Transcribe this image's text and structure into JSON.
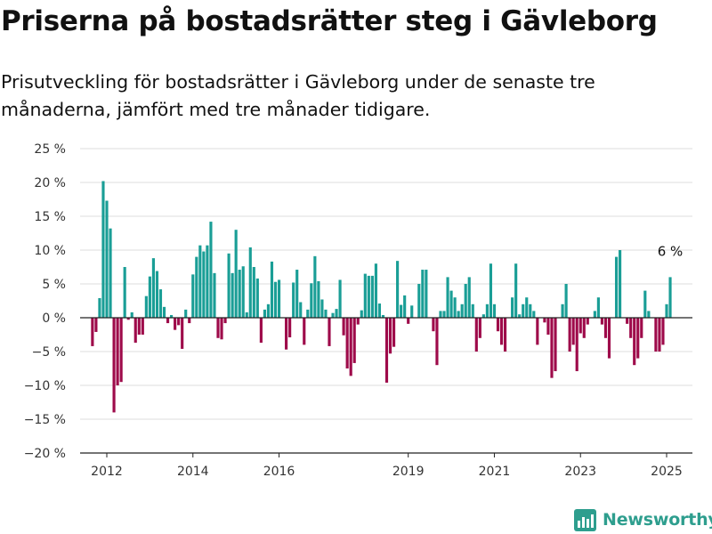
{
  "header": {
    "title": "Priserna på bostadsrätter steg i Gävleborg",
    "subtitle": "Prisutveckling för bostadsrätter i Gävleborg under de senaste tre månaderna, jämfört med tre månader tidigare."
  },
  "brand": {
    "name": "Newsworthy",
    "icon": "newsworthy-logo-icon"
  },
  "colors": {
    "positive": "#1a9e96",
    "negative": "#9e0a4a",
    "grid": "#dddddd",
    "axis": "#222222",
    "brand": "#2e9e8e"
  },
  "chart_data": {
    "type": "bar",
    "title": "",
    "xlabel": "",
    "ylabel": "",
    "ylim": [
      -20,
      25
    ],
    "yticks": [
      25,
      20,
      15,
      10,
      5,
      0,
      -5,
      -10,
      -15,
      -20
    ],
    "ytick_labels": [
      "25 %",
      "20 %",
      "15 %",
      "10 %",
      "5 %",
      "0 %",
      "−5 %",
      "−10 %",
      "−15 %",
      "−20 %"
    ],
    "xticks": [
      2012,
      2014,
      2016,
      2019,
      2021,
      2023,
      2025
    ],
    "xtick_labels": [
      "2012",
      "2014",
      "2016",
      "2019",
      "2021",
      "2023",
      "2025"
    ],
    "x_start": "2011-09",
    "x_end": "2025-05",
    "grid": true,
    "annotation": {
      "label": "6 %",
      "at": "last"
    },
    "values": [
      -4.2,
      -2.1,
      2.9,
      20.2,
      17.3,
      13.2,
      -14,
      -10,
      -9.5,
      7.5,
      -0.3,
      0.8,
      -3.7,
      -2.5,
      -2.5,
      3.2,
      6.1,
      8.8,
      6.9,
      4.2,
      1.6,
      -0.8,
      0.4,
      -1.8,
      -1.1,
      -4.6,
      1.2,
      -0.8,
      6.4,
      9,
      10.7,
      9.8,
      10.7,
      14.2,
      6.6,
      -3,
      -3.2,
      -0.8,
      9.5,
      6.6,
      13,
      7.1,
      7.6,
      0.8,
      10.4,
      7.5,
      5.8,
      -3.7,
      1.2,
      2,
      8.3,
      5.3,
      5.6,
      0,
      -4.7,
      -2.9,
      5.2,
      7.1,
      2.3,
      -4,
      1.2,
      5.1,
      9.1,
      5.4,
      2.7,
      1.2,
      -4.2,
      0.7,
      1.3,
      5.6,
      -2.6,
      -7.5,
      -8.6,
      -6.7,
      -1,
      1.1,
      6.5,
      6.2,
      6.2,
      8,
      2.1,
      0.4,
      -9.6,
      -5.3,
      -4.3,
      8.4,
      1.9,
      3.3,
      -0.9,
      1.8,
      0,
      5,
      7.1,
      7.1,
      0,
      -2,
      -7,
      1,
      1,
      6,
      4,
      3,
      1,
      2,
      5,
      6,
      2,
      -5,
      -3,
      0.5,
      2,
      8,
      2,
      -2,
      -4,
      -5,
      0,
      3,
      8,
      0.5,
      2,
      3,
      2,
      1,
      -4,
      0,
      -0.7,
      -2.5,
      -8.9,
      -7.9,
      0,
      2,
      5,
      -5,
      -4,
      -7.9,
      -2.3,
      -3,
      -1,
      0,
      1,
      3,
      -1,
      -3,
      -6,
      0,
      9,
      10,
      0,
      -0.9,
      -3,
      -7,
      -6,
      -3,
      4,
      1,
      0,
      -5,
      -5,
      -4,
      2,
      6
    ]
  }
}
